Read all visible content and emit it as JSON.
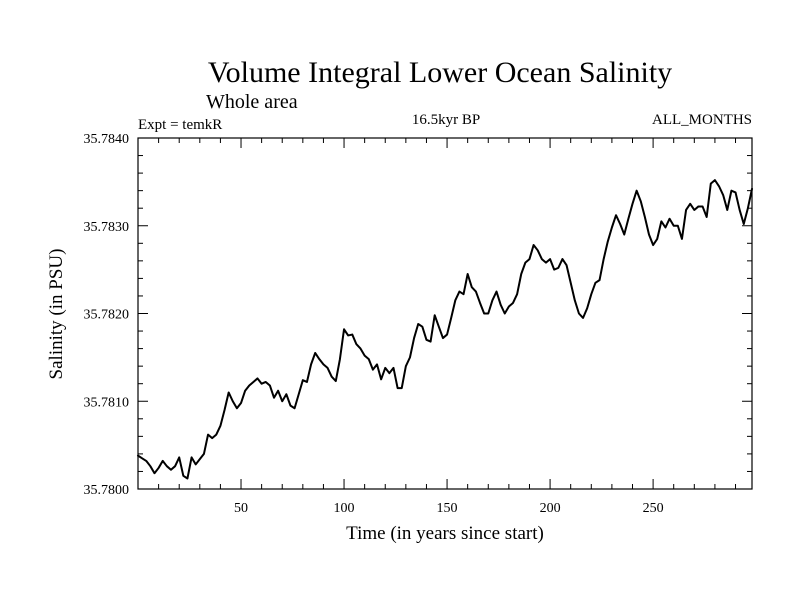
{
  "chart_data": {
    "type": "line",
    "title": "Volume Integral Lower Ocean Salinity",
    "subtitle": "Whole area",
    "header_left": "Expt = temkR",
    "header_center": "16.5kyr BP",
    "header_right": "ALL_MONTHS",
    "xlabel": "Time (in years since start)",
    "ylabel": "Salinity (in PSU)",
    "xlim": [
      0,
      298
    ],
    "ylim": [
      35.78,
      35.784
    ],
    "xticks": [
      50,
      100,
      150,
      200,
      250
    ],
    "xtick_labels": [
      "50",
      "100",
      "150",
      "200",
      "250"
    ],
    "yticks": [
      35.78,
      35.781,
      35.782,
      35.783,
      35.784
    ],
    "ytick_labels": [
      "35.7800",
      "35.7810",
      "35.7820",
      "35.7830",
      "35.7840"
    ],
    "line_color": "#000000",
    "series": [
      {
        "name": "Salinity",
        "x": [
          0,
          2,
          4,
          6,
          8,
          10,
          12,
          14,
          16,
          18,
          20,
          22,
          24,
          26,
          28,
          30,
          32,
          34,
          36,
          38,
          40,
          42,
          44,
          46,
          48,
          50,
          52,
          54,
          56,
          58,
          60,
          62,
          64,
          66,
          68,
          70,
          72,
          74,
          76,
          78,
          80,
          82,
          84,
          86,
          88,
          90,
          92,
          94,
          96,
          98,
          100,
          102,
          104,
          106,
          108,
          110,
          112,
          114,
          116,
          118,
          120,
          122,
          124,
          126,
          128,
          130,
          132,
          134,
          136,
          138,
          140,
          142,
          144,
          146,
          148,
          150,
          152,
          154,
          156,
          158,
          160,
          162,
          164,
          166,
          168,
          170,
          172,
          174,
          176,
          178,
          180,
          182,
          184,
          186,
          188,
          190,
          192,
          194,
          196,
          198,
          200,
          202,
          204,
          206,
          208,
          210,
          212,
          214,
          216,
          218,
          220,
          222,
          224,
          226,
          228,
          230,
          232,
          234,
          236,
          238,
          240,
          242,
          244,
          246,
          248,
          250,
          252,
          254,
          256,
          258,
          260,
          262,
          264,
          266,
          268,
          270,
          272,
          274,
          276,
          278,
          280,
          282,
          284,
          286,
          288,
          290,
          292,
          294,
          296,
          298
        ],
        "values": [
          35.78038,
          35.78035,
          35.78032,
          35.78026,
          35.78018,
          35.78024,
          35.78032,
          35.78026,
          35.78022,
          35.78026,
          35.78036,
          35.78015,
          35.78012,
          35.78036,
          35.78028,
          35.78034,
          35.7804,
          35.78062,
          35.78058,
          35.78062,
          35.78072,
          35.7809,
          35.7811,
          35.781,
          35.78092,
          35.78098,
          35.78112,
          35.78118,
          35.78122,
          35.78126,
          35.7812,
          35.78122,
          35.78118,
          35.78104,
          35.78112,
          35.781,
          35.78108,
          35.78095,
          35.78092,
          35.78108,
          35.78124,
          35.78122,
          35.78142,
          35.78155,
          35.78148,
          35.78142,
          35.78138,
          35.78128,
          35.78123,
          35.78148,
          35.78182,
          35.78175,
          35.78176,
          35.78165,
          35.7816,
          35.78152,
          35.78148,
          35.78136,
          35.78142,
          35.78125,
          35.78138,
          35.78132,
          35.78138,
          35.78115,
          35.78115,
          35.7814,
          35.7815,
          35.78172,
          35.78188,
          35.78185,
          35.7817,
          35.78168,
          35.78198,
          35.78185,
          35.78172,
          35.78176,
          35.78195,
          35.78215,
          35.78225,
          35.78222,
          35.78245,
          35.7823,
          35.78225,
          35.78212,
          35.782,
          35.782,
          35.78215,
          35.78225,
          35.7821,
          35.782,
          35.78208,
          35.78212,
          35.78222,
          35.78245,
          35.78258,
          35.78262,
          35.78278,
          35.78272,
          35.78262,
          35.78258,
          35.78262,
          35.7825,
          35.78252,
          35.78262,
          35.78255,
          35.78235,
          35.78215,
          35.782,
          35.78195,
          35.78206,
          35.78222,
          35.78235,
          35.78238,
          35.78262,
          35.78282,
          35.78298,
          35.78312,
          35.78302,
          35.7829,
          35.78308,
          35.78325,
          35.7834,
          35.78328,
          35.7831,
          35.7829,
          35.78278,
          35.78285,
          35.78305,
          35.78298,
          35.78308,
          35.783,
          35.783,
          35.78285,
          35.78318,
          35.78325,
          35.78318,
          35.78322,
          35.78322,
          35.7831,
          35.78348,
          35.78352,
          35.78345,
          35.78335,
          35.78318,
          35.7834,
          35.78338,
          35.78318,
          35.78302,
          35.7832,
          35.78342
        ]
      }
    ]
  }
}
